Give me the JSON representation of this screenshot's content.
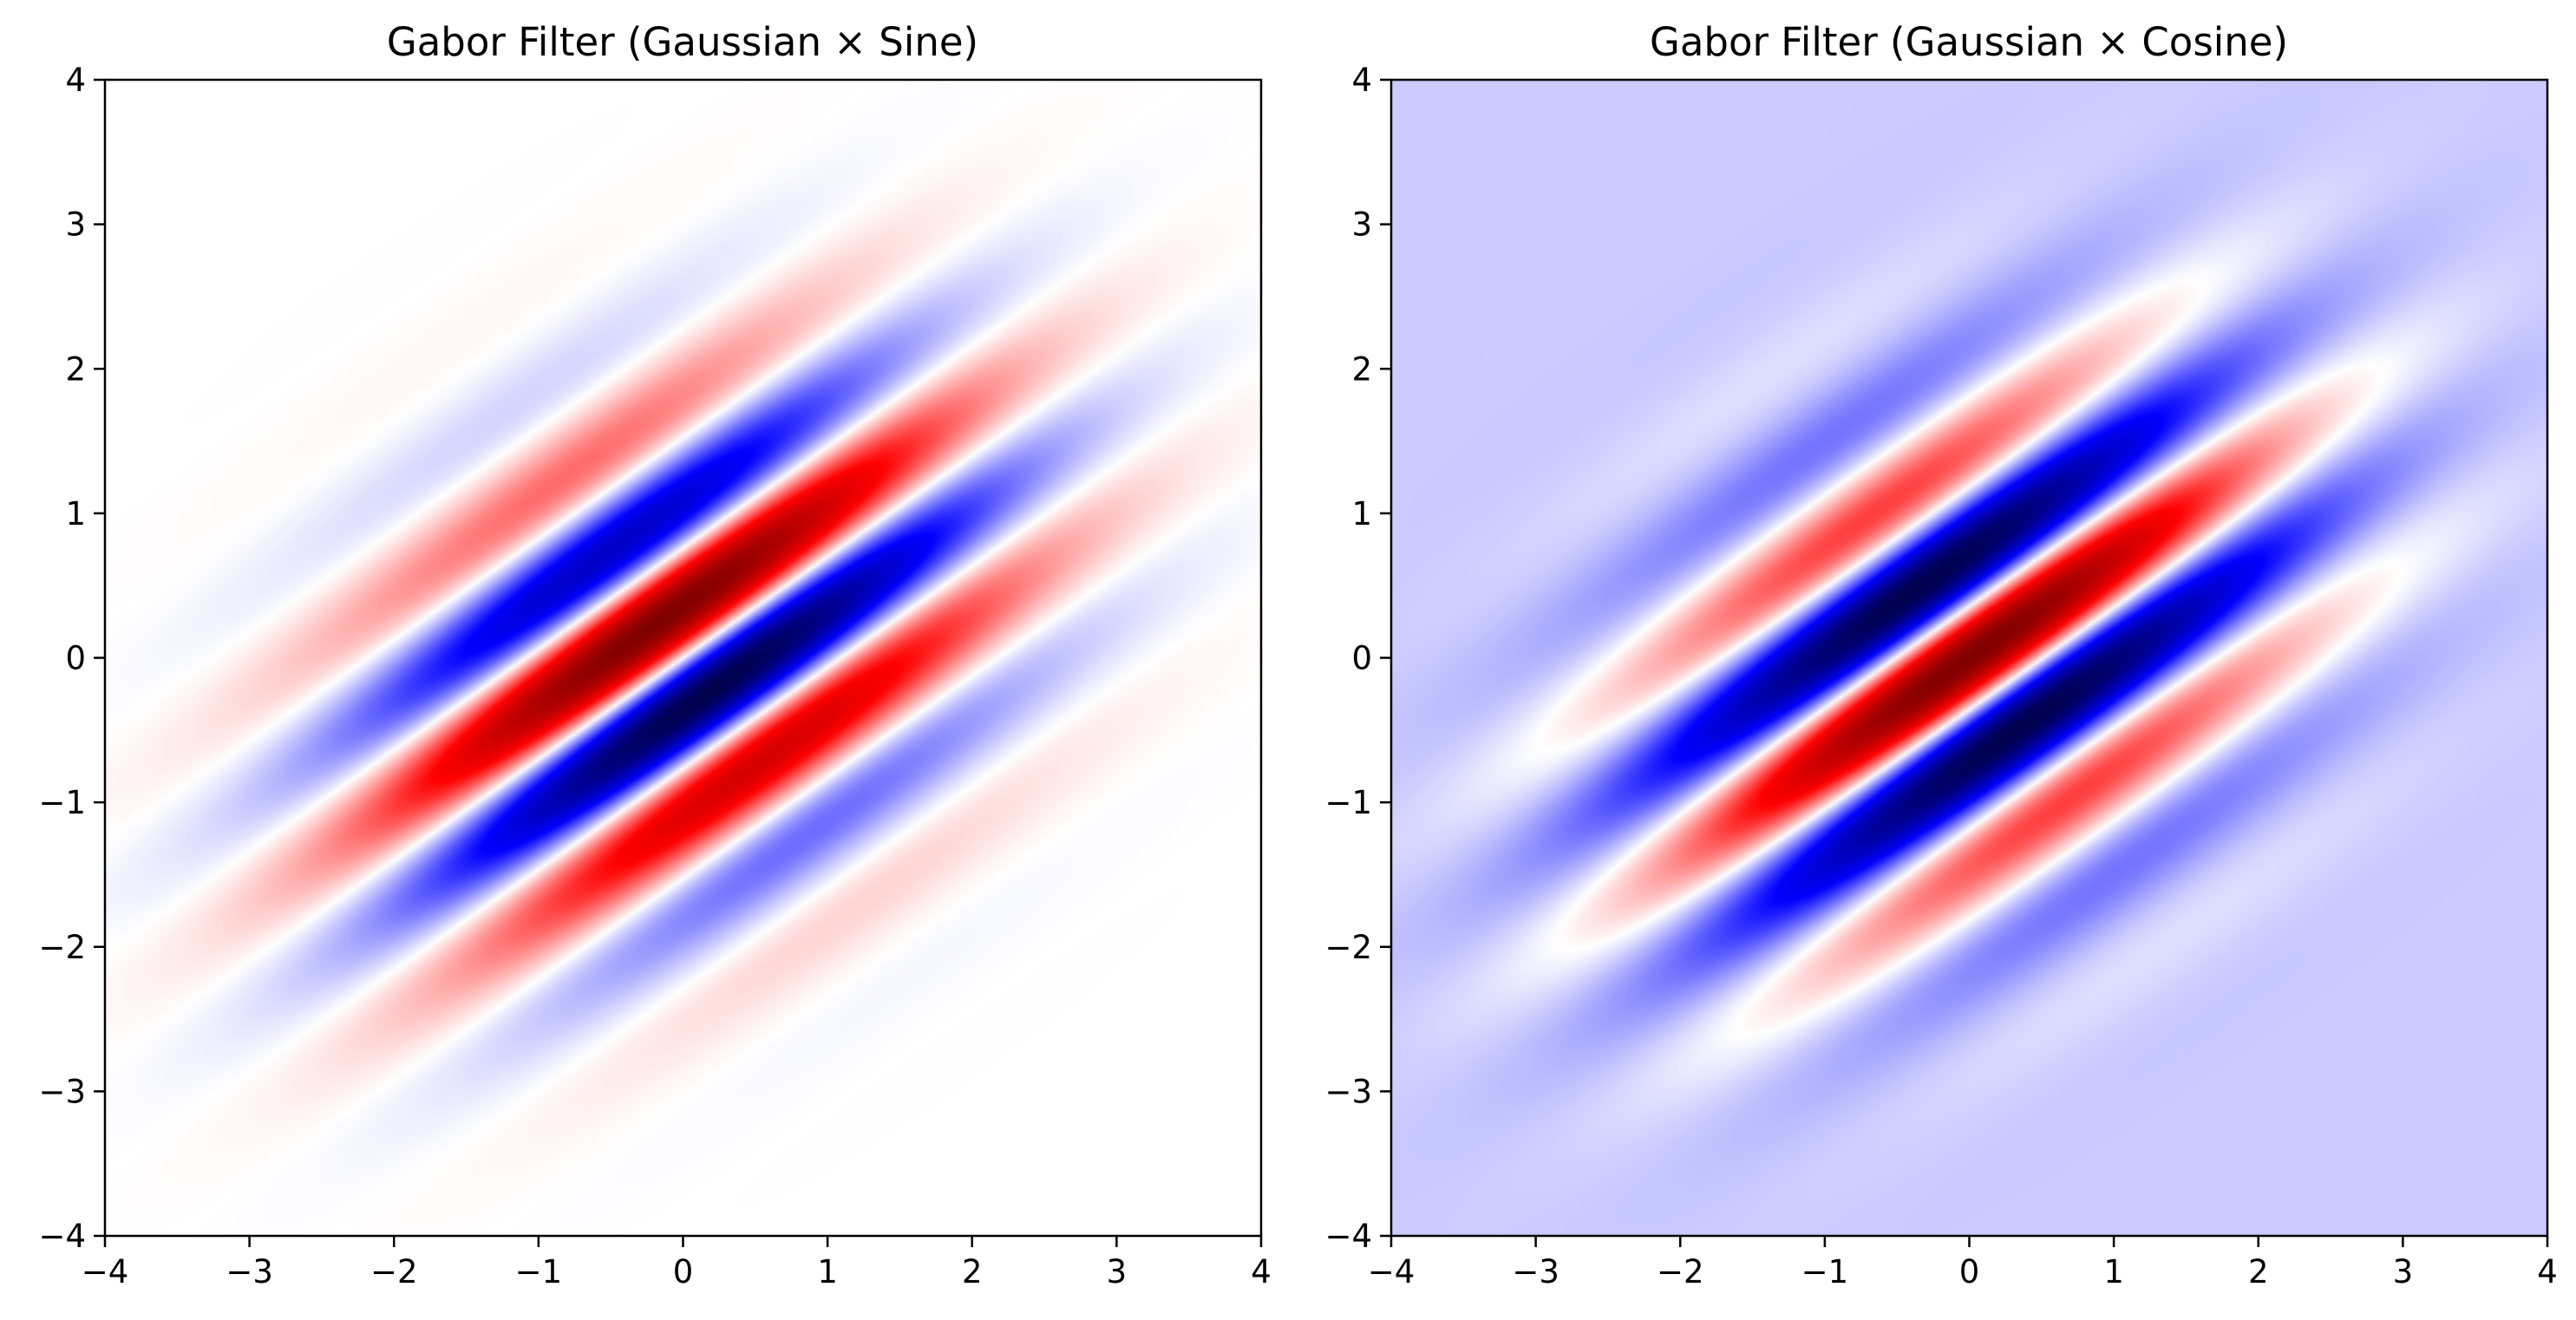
{
  "chart_data": [
    {
      "type": "heatmap",
      "title": "Gabor Filter (Gaussian × Sine)",
      "xlabel": "",
      "ylabel": "",
      "xlim": [
        -4,
        4
      ],
      "ylim": [
        -4,
        4
      ],
      "x_ticks": [
        "−4",
        "−3",
        "−2",
        "−1",
        "0",
        "1",
        "2",
        "3",
        "4"
      ],
      "y_ticks": [
        "−4",
        "−3",
        "−2",
        "−1",
        "0",
        "1",
        "2",
        "3",
        "4"
      ],
      "grid": false,
      "colormap": "seismic",
      "function": "gaussian_times_sine",
      "gaussian_sigma_along_stripes": 1.6,
      "gaussian_sigma_across_stripes": 0.95,
      "stripe_orientation_deg": 35,
      "spatial_frequency_cycles_per_unit": 0.8
    },
    {
      "type": "heatmap",
      "title": "Gabor Filter (Gaussian × Cosine)",
      "xlabel": "",
      "ylabel": "",
      "xlim": [
        -4,
        4
      ],
      "ylim": [
        -4,
        4
      ],
      "x_ticks": [
        "−4",
        "−3",
        "−2",
        "−1",
        "0",
        "1",
        "2",
        "3",
        "4"
      ],
      "y_ticks": [
        "−4",
        "−3",
        "−2",
        "−1",
        "0",
        "1",
        "2",
        "3",
        "4"
      ],
      "grid": false,
      "colormap": "seismic",
      "function": "gaussian_times_cosine",
      "gaussian_sigma_along_stripes": 1.6,
      "gaussian_sigma_across_stripes": 0.95,
      "stripe_orientation_deg": 35,
      "spatial_frequency_cycles_per_unit": 0.8
    }
  ]
}
